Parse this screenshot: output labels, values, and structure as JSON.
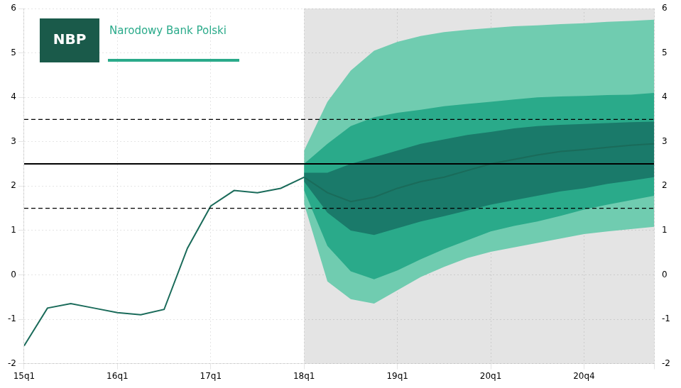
{
  "chart_data": {
    "type": "line",
    "xlim": [
      0,
      27
    ],
    "xticks": [
      {
        "value": 0,
        "label": "15q1"
      },
      {
        "value": 4,
        "label": "16q1"
      },
      {
        "value": 8,
        "label": "17q1"
      },
      {
        "value": 12,
        "label": "18q1"
      },
      {
        "value": 16,
        "label": "19q1"
      },
      {
        "value": 20,
        "label": "20q1"
      },
      {
        "value": 24,
        "label": "20q4"
      },
      {
        "value": 27,
        "label": null
      }
    ],
    "ylim": [
      -2,
      6
    ],
    "yticks": [
      -2,
      -1,
      0,
      1,
      2,
      3,
      4,
      5,
      6
    ],
    "y2lim": [
      -2,
      6
    ],
    "y2ticks": [
      -2,
      -1,
      0,
      1,
      2,
      3,
      4,
      5,
      6
    ],
    "grid": true,
    "shaded_regions": [
      {
        "xlim": [
          0,
          12
        ],
        "color": "#ffffff"
      },
      {
        "xlim": [
          12,
          27
        ],
        "color": "#e4e4e4"
      }
    ],
    "bands": [
      {
        "color": "#70ccb0",
        "x": [
          12,
          13,
          14,
          15,
          16,
          17,
          18,
          19,
          20,
          21,
          22,
          23,
          24,
          25,
          26,
          27
        ],
        "lower": [
          1.6,
          -0.15,
          -0.55,
          -0.65,
          -0.35,
          -0.05,
          0.18,
          0.38,
          0.52,
          0.62,
          0.72,
          0.82,
          0.92,
          0.98,
          1.03,
          1.08
        ],
        "upper": [
          2.8,
          3.9,
          4.6,
          5.05,
          5.25,
          5.38,
          5.47,
          5.52,
          5.56,
          5.6,
          5.62,
          5.65,
          5.67,
          5.7,
          5.72,
          5.75
        ]
      },
      {
        "color": "#2aaa8a",
        "x": [
          12,
          13,
          14,
          15,
          16,
          17,
          18,
          19,
          20,
          21,
          22,
          23,
          24,
          25,
          26,
          27
        ],
        "lower": [
          1.9,
          0.65,
          0.08,
          -0.1,
          0.1,
          0.35,
          0.58,
          0.78,
          0.98,
          1.1,
          1.2,
          1.33,
          1.47,
          1.58,
          1.68,
          1.78
        ],
        "upper": [
          2.5,
          2.95,
          3.35,
          3.55,
          3.65,
          3.72,
          3.8,
          3.85,
          3.9,
          3.95,
          4.0,
          4.02,
          4.03,
          4.05,
          4.06,
          4.1
        ]
      },
      {
        "color": "#1a7a6a",
        "x": [
          12,
          13,
          14,
          15,
          16,
          17,
          18,
          19,
          20,
          21,
          22,
          23,
          24,
          25,
          26,
          27
        ],
        "lower": [
          2.1,
          1.4,
          1.0,
          0.9,
          1.05,
          1.2,
          1.32,
          1.45,
          1.58,
          1.68,
          1.78,
          1.88,
          1.95,
          2.05,
          2.12,
          2.2
        ],
        "upper": [
          2.3,
          2.3,
          2.5,
          2.65,
          2.8,
          2.95,
          3.05,
          3.15,
          3.22,
          3.3,
          3.35,
          3.38,
          3.4,
          3.42,
          3.44,
          3.45
        ]
      }
    ],
    "series": [
      {
        "color": "#1a6b5a",
        "line_style": "solid",
        "x": [
          12,
          13,
          14,
          15,
          16,
          17,
          18,
          19,
          20,
          21,
          22,
          23,
          24,
          25,
          26,
          27
        ],
        "values": [
          2.2,
          1.85,
          1.65,
          1.75,
          1.95,
          2.1,
          2.2,
          2.35,
          2.5,
          2.6,
          2.7,
          2.78,
          2.82,
          2.87,
          2.92,
          2.95
        ]
      },
      {
        "color": "#1a6b5a",
        "line_style": "solid",
        "x": [
          0,
          1,
          2,
          3,
          4,
          5,
          6,
          7,
          8,
          9,
          10,
          11,
          12
        ],
        "values": [
          -1.6,
          -0.75,
          -0.65,
          -0.75,
          -0.85,
          -0.9,
          -0.78,
          0.6,
          1.55,
          1.9,
          1.85,
          1.95,
          2.2
        ]
      }
    ],
    "reference_lines": [
      {
        "value": 2.5,
        "color": "#000000",
        "line_style": "solid"
      },
      {
        "value": 3.5,
        "color": "#000000",
        "line_style": "dashed"
      },
      {
        "value": 1.5,
        "color": "#000000",
        "line_style": "dashed"
      }
    ],
    "annotations": [
      {
        "text": "NBP",
        "color": "#1a5a4a"
      },
      {
        "text": "Narodowy Bank Polski",
        "color": "#2aaa8a"
      }
    ]
  }
}
